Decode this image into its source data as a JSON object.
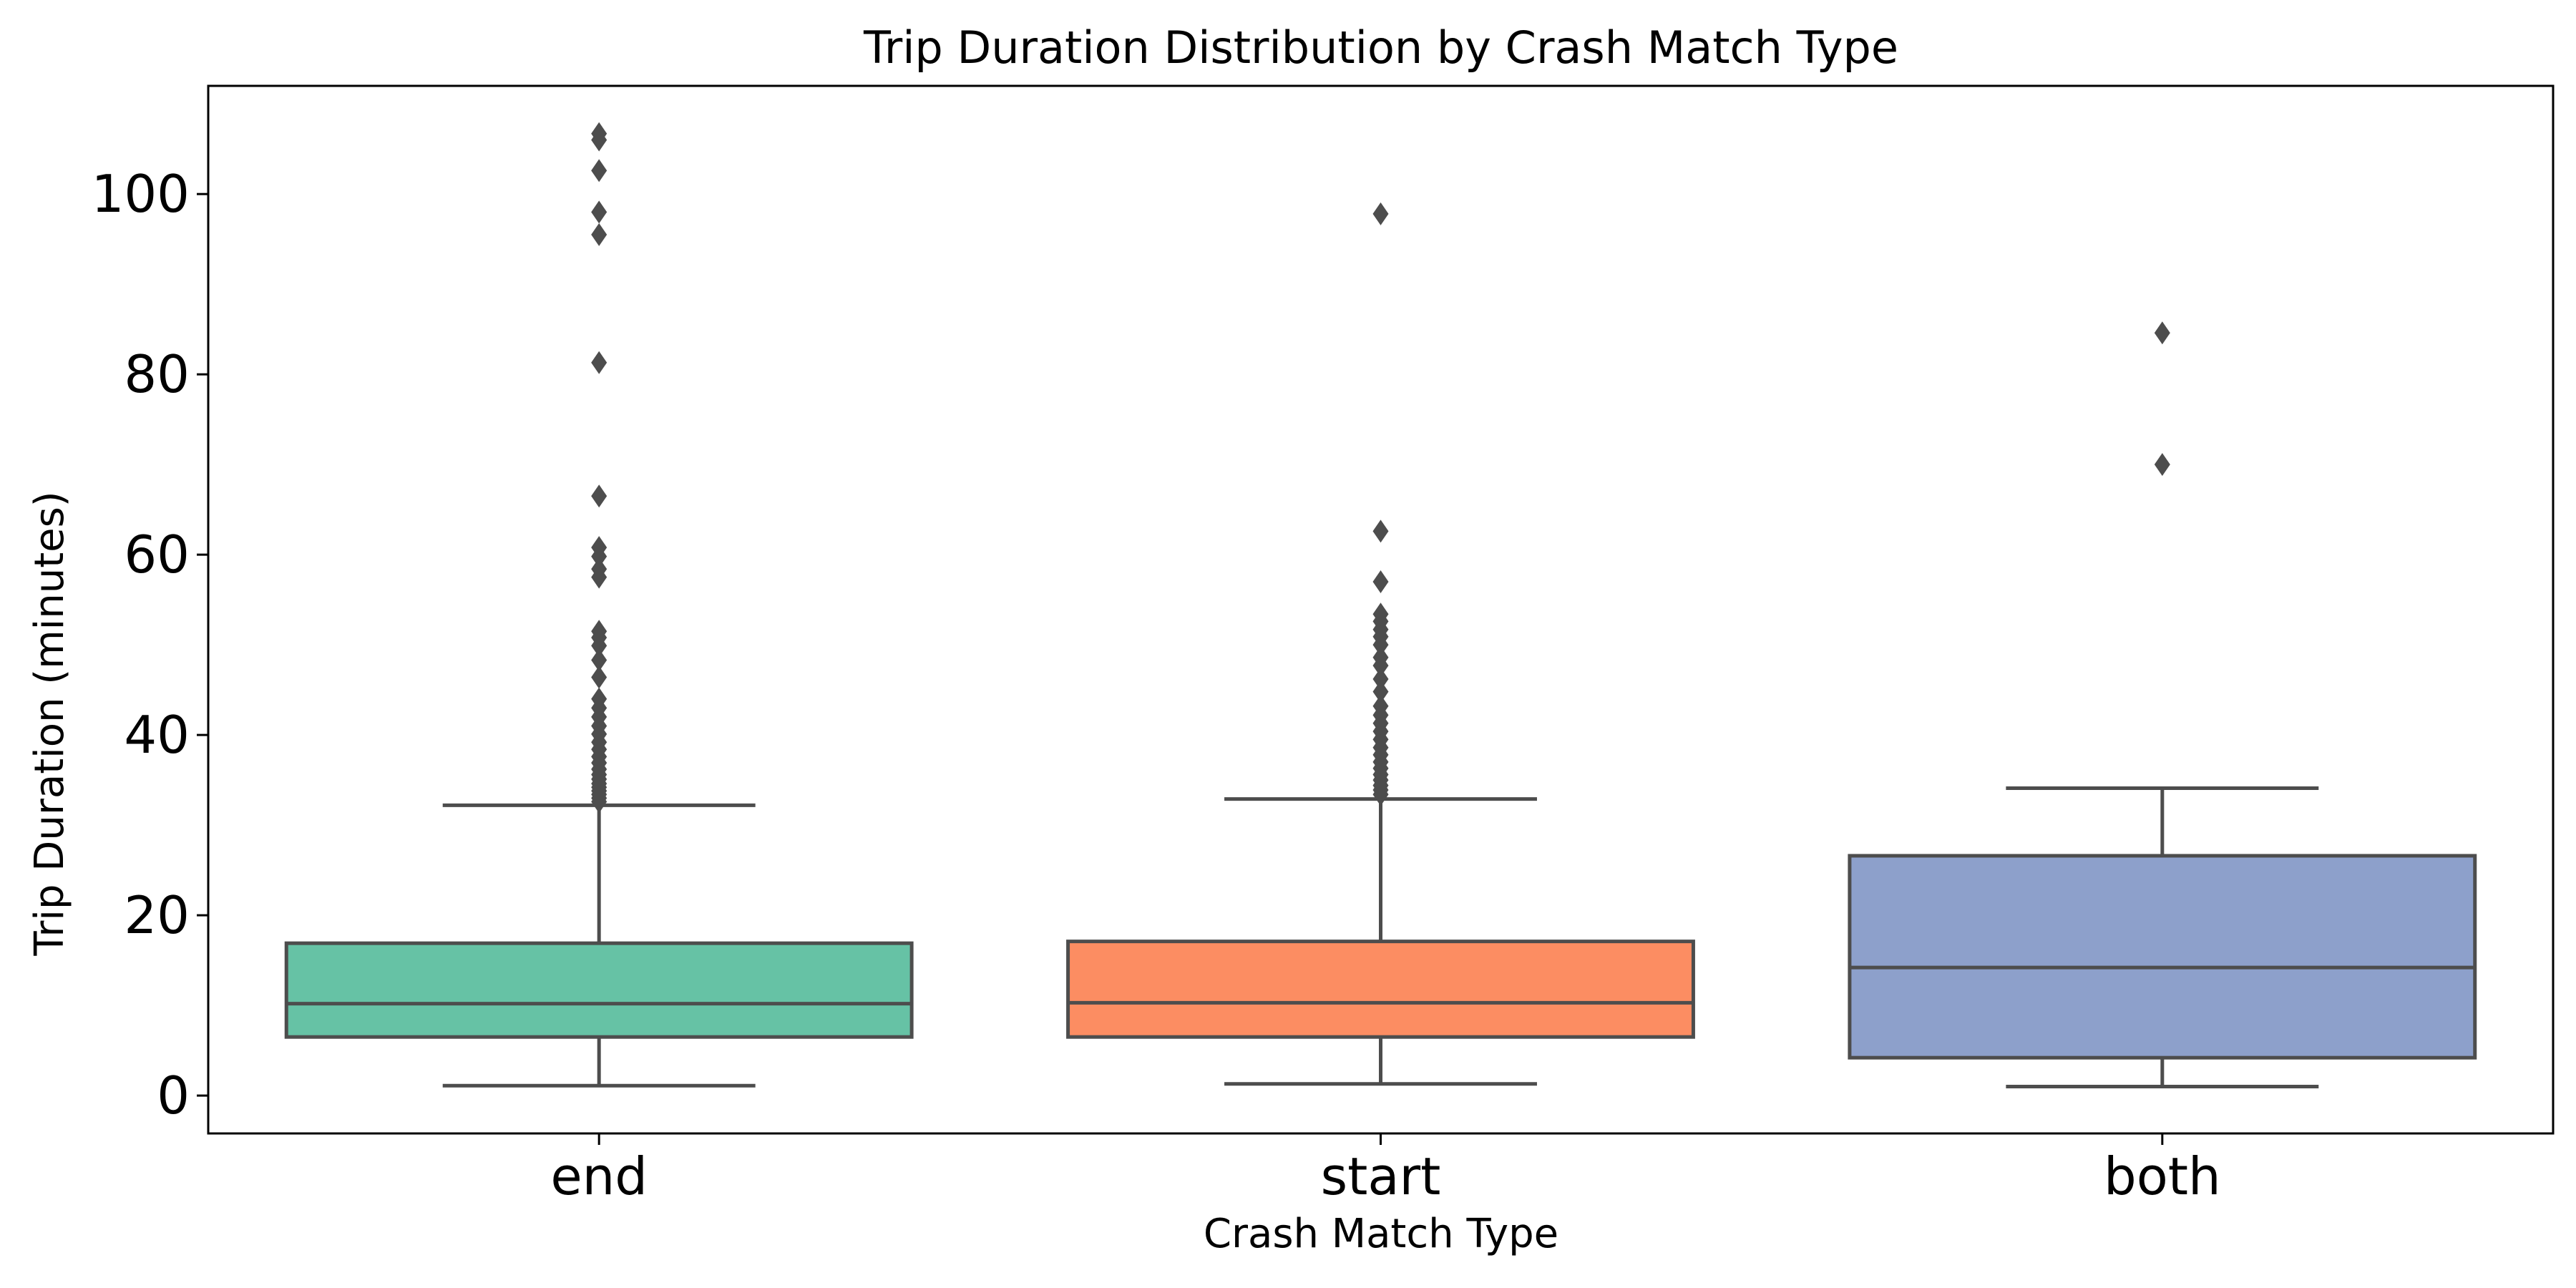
{
  "chart_data": {
    "type": "box",
    "title": "Trip Duration Distribution by Crash Match Type",
    "xlabel": "Crash Match Type",
    "ylabel": "Trip Duration (minutes)",
    "categories": [
      "end",
      "start",
      "both"
    ],
    "ylim": [
      -4.2,
      112
    ],
    "yticks": [
      0,
      20,
      40,
      60,
      80,
      100
    ],
    "grid": false,
    "colors": [
      "#66c2a5",
      "#fc8d62",
      "#8da0cb"
    ],
    "boxes": [
      {
        "category": "end",
        "whislo": 1.1,
        "q1": 6.5,
        "median": 10.2,
        "q3": 16.9,
        "whishi": 32.2,
        "fliers": [
          32.6,
          33.0,
          33.4,
          33.8,
          34.2,
          34.6,
          35.1,
          35.6,
          36.2,
          36.9,
          37.6,
          38.4,
          39.2,
          40.1,
          41.0,
          42.0,
          43.0,
          44.0,
          46.4,
          48.3,
          49.9,
          50.8,
          51.5,
          57.5,
          58.4,
          59.8,
          60.8,
          66.5,
          81.3,
          95.5,
          98.0,
          102.6,
          106.0,
          106.7
        ]
      },
      {
        "category": "start",
        "whislo": 1.3,
        "q1": 6.5,
        "median": 10.3,
        "q3": 17.1,
        "whishi": 32.9,
        "fliers": [
          33.4,
          33.9,
          34.4,
          35.0,
          35.6,
          36.3,
          37.0,
          37.8,
          38.6,
          39.5,
          40.4,
          41.3,
          42.2,
          43.2,
          44.8,
          46.2,
          47.7,
          48.6,
          50.0,
          50.9,
          51.7,
          52.6,
          53.4,
          57.0,
          62.6,
          97.8
        ]
      },
      {
        "category": "both",
        "whislo": 1.0,
        "q1": 4.2,
        "median": 14.2,
        "q3": 26.6,
        "whishi": 34.1,
        "fliers": [
          70.0,
          84.6
        ]
      }
    ]
  }
}
